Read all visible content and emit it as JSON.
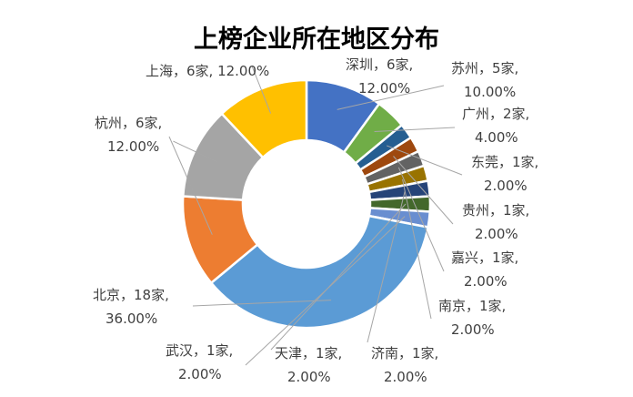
{
  "chart_data": {
    "type": "pie",
    "variant": "doughnut",
    "title": "上榜企业所在地区分布",
    "legend": "none",
    "slices": [
      {
        "name": "苏州",
        "count": 5,
        "unit": "家",
        "percent": "10.00%",
        "value": 10.0,
        "color": "#4472C4",
        "label_line1": "苏州，5家,",
        "label_line2": "10.00%"
      },
      {
        "name": "广州",
        "count": 2,
        "unit": "家",
        "percent": "4.00%",
        "value": 4.0,
        "color": "#70AD47",
        "label_line1": "广州，2家,",
        "label_line2": "4.00%"
      },
      {
        "name": "东莞",
        "count": 1,
        "unit": "家",
        "percent": "2.00%",
        "value": 2.0,
        "color": "#255E91",
        "label_line1": "东莞，1家,",
        "label_line2": "2.00%"
      },
      {
        "name": "贵州",
        "count": 1,
        "unit": "家",
        "percent": "2.00%",
        "value": 2.0,
        "color": "#9E480E",
        "label_line1": "贵州，1家,",
        "label_line2": "2.00%"
      },
      {
        "name": "嘉兴",
        "count": 1,
        "unit": "家",
        "percent": "2.00%",
        "value": 2.0,
        "color": "#636363",
        "label_line1": "嘉兴，1家,",
        "label_line2": "2.00%"
      },
      {
        "name": "南京",
        "count": 1,
        "unit": "家",
        "percent": "2.00%",
        "value": 2.0,
        "color": "#997300",
        "label_line1": "南京，1家,",
        "label_line2": "2.00%"
      },
      {
        "name": "济南",
        "count": 1,
        "unit": "家",
        "percent": "2.00%",
        "value": 2.0,
        "color": "#264478",
        "label_line1": "济南，1家,",
        "label_line2": "2.00%"
      },
      {
        "name": "天津",
        "count": 1,
        "unit": "家",
        "percent": "2.00%",
        "value": 2.0,
        "color": "#43682B",
        "label_line1": "天津，1家,",
        "label_line2": "2.00%"
      },
      {
        "name": "武汉",
        "count": 1,
        "unit": "家",
        "percent": "2.00%",
        "value": 2.0,
        "color": "#698ED0",
        "label_line1": "武汉，1家,",
        "label_line2": "2.00%"
      },
      {
        "name": "北京",
        "count": 18,
        "unit": "家",
        "percent": "36.00%",
        "value": 36.0,
        "color": "#5B9BD5",
        "label_line1": "北京，18家,",
        "label_line2": "36.00%"
      },
      {
        "name": "杭州",
        "count": 6,
        "unit": "家",
        "percent": "12.00%",
        "value": 12.0,
        "color": "#ED7D31",
        "label_line1": "杭州，6家,",
        "label_line2": "12.00%"
      },
      {
        "name": "上海",
        "count": 6,
        "unit": "家",
        "percent": "12.00%",
        "value": 12.0,
        "color": "#A5A5A5",
        "label_line1": "上海，6家, 12.00%",
        "label_line2": ""
      },
      {
        "name": "深圳",
        "count": 6,
        "unit": "家",
        "percent": "12.00%",
        "value": 12.0,
        "color": "#FFC000",
        "label_line1": "深圳，6家,",
        "label_line2": "12.00%"
      }
    ]
  }
}
